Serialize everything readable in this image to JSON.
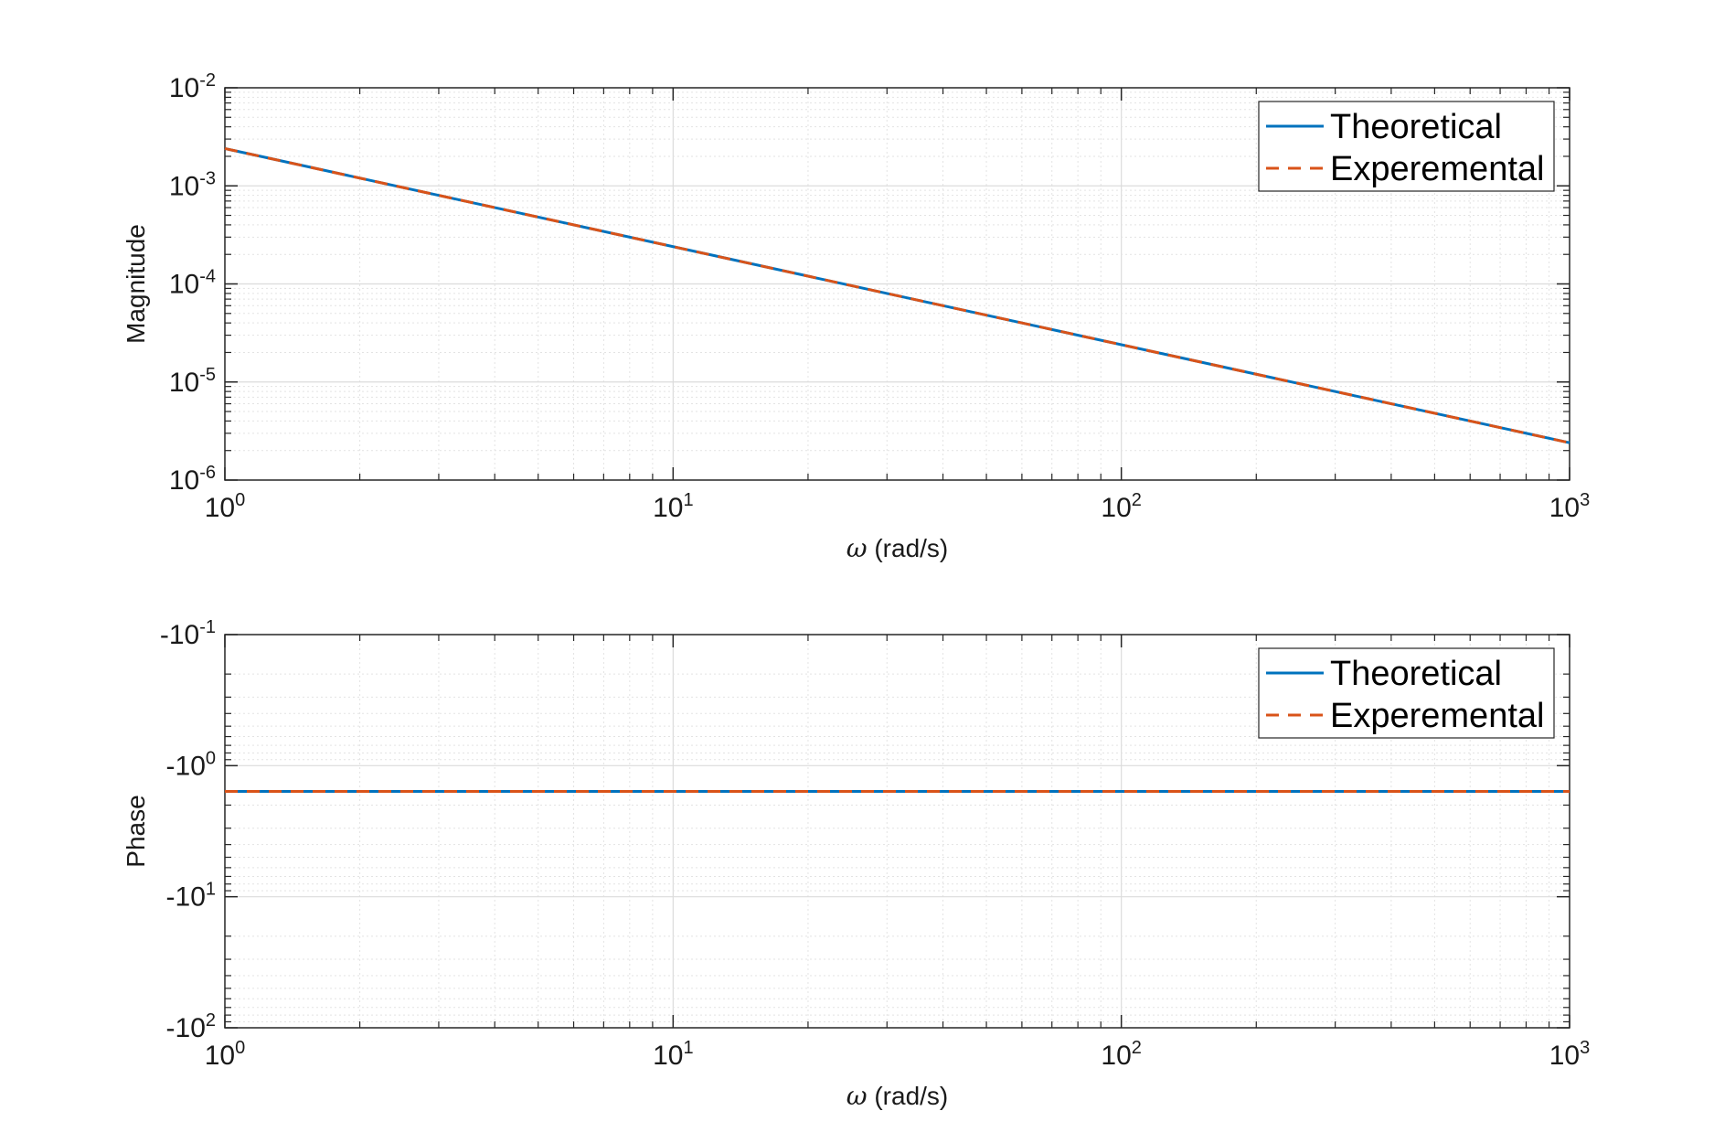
{
  "chart_data": [
    {
      "type": "line",
      "panel": "magnitude",
      "xlabel_symbol": "ω",
      "xlabel_unit": " (rad/s)",
      "ylabel": "Magnitude",
      "x_scale": "log",
      "y_scale": "log",
      "xlim": [
        1,
        1000
      ],
      "ylim": [
        1e-06,
        0.01
      ],
      "x_ticks": [
        {
          "base": "10",
          "exp": "0",
          "value": 1
        },
        {
          "base": "10",
          "exp": "1",
          "value": 10
        },
        {
          "base": "10",
          "exp": "2",
          "value": 100
        },
        {
          "base": "10",
          "exp": "3",
          "value": 1000
        }
      ],
      "y_ticks": [
        {
          "base": "10",
          "exp": "-2",
          "value": 0.01
        },
        {
          "base": "10",
          "exp": "-3",
          "value": 0.001
        },
        {
          "base": "10",
          "exp": "-4",
          "value": 0.0001
        },
        {
          "base": "10",
          "exp": "-5",
          "value": 1e-05
        },
        {
          "base": "10",
          "exp": "-6",
          "value": 1e-06
        }
      ],
      "grid": true,
      "minor_grid": true,
      "legend_position": "top-right",
      "series": [
        {
          "name": "Theoretical",
          "color": "#0072BD",
          "style": "solid",
          "x": [
            1,
            1000
          ],
          "y": [
            0.0024,
            2.4e-06
          ]
        },
        {
          "name": "Experemental",
          "color": "#D95319",
          "style": "dashed",
          "x": [
            1,
            1000
          ],
          "y": [
            0.0024,
            2.4e-06
          ]
        }
      ]
    },
    {
      "type": "line",
      "panel": "phase",
      "xlabel_symbol": "ω",
      "xlabel_unit": " (rad/s)",
      "ylabel": "Phase",
      "x_scale": "log",
      "y_scale": "log (negative values, reversed)",
      "xlim": [
        1,
        1000
      ],
      "ylim": [
        -0.1,
        -100
      ],
      "x_ticks": [
        {
          "base": "10",
          "exp": "0",
          "value": 1
        },
        {
          "base": "10",
          "exp": "1",
          "value": 10
        },
        {
          "base": "10",
          "exp": "2",
          "value": 100
        },
        {
          "base": "10",
          "exp": "3",
          "value": 1000
        }
      ],
      "y_ticks": [
        {
          "base": "-10",
          "exp": "-1",
          "value": -0.1
        },
        {
          "base": "-10",
          "exp": "0",
          "value": -1
        },
        {
          "base": "-10",
          "exp": "1",
          "value": -10
        },
        {
          "base": "-10",
          "exp": "2",
          "value": -100
        }
      ],
      "grid": true,
      "minor_grid": true,
      "legend_position": "top-right",
      "series": [
        {
          "name": "Theoretical",
          "color": "#0072BD",
          "style": "solid",
          "x": [
            1,
            1000
          ],
          "y": [
            -1.5708,
            -1.5708
          ]
        },
        {
          "name": "Experemental",
          "color": "#D95319",
          "style": "dashed",
          "x": [
            1,
            1000
          ],
          "y": [
            -1.5708,
            -1.5708
          ]
        }
      ]
    }
  ]
}
